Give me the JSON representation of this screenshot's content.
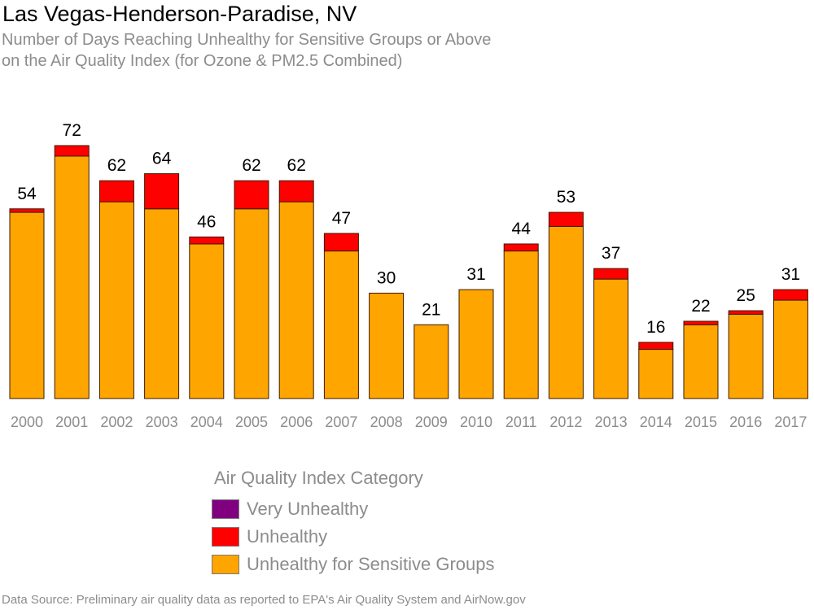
{
  "title": "Las Vegas-Henderson-Paradise, NV",
  "subtitle_lines": [
    "Number of Days Reaching Unhealthy for Sensitive Groups or Above",
    "on the Air Quality Index (for Ozone & PM2.5 Combined)"
  ],
  "legend": {
    "title": "Air Quality Index Category",
    "items": [
      {
        "label": "Very Unhealthy",
        "color": "#800080"
      },
      {
        "label": "Unhealthy",
        "color": "#ff0000"
      },
      {
        "label": "Unhealthy for Sensitive Groups",
        "color": "#ffa500"
      }
    ]
  },
  "source": "Data Source: Preliminary air quality data as reported to EPA's Air Quality System and AirNow.gov",
  "chart_data": {
    "type": "bar",
    "stacked": true,
    "categories": [
      "2000",
      "2001",
      "2002",
      "2003",
      "2004",
      "2005",
      "2006",
      "2007",
      "2008",
      "2009",
      "2010",
      "2011",
      "2012",
      "2013",
      "2014",
      "2015",
      "2016",
      "2017"
    ],
    "series": [
      {
        "name": "Unhealthy for Sensitive Groups",
        "color": "#ffa500",
        "values": [
          53,
          69,
          56,
          54,
          44,
          54,
          56,
          42,
          30,
          21,
          31,
          42,
          49,
          34,
          14,
          21,
          24,
          28
        ]
      },
      {
        "name": "Unhealthy",
        "color": "#ff0000",
        "values": [
          1,
          3,
          6,
          10,
          2,
          8,
          6,
          5,
          0,
          0,
          0,
          2,
          4,
          3,
          2,
          1,
          1,
          3
        ]
      },
      {
        "name": "Very Unhealthy",
        "color": "#800080",
        "values": [
          0,
          0,
          0,
          0,
          0,
          0,
          0,
          0,
          0,
          0,
          0,
          0,
          0,
          0,
          0,
          0,
          0,
          0
        ]
      }
    ],
    "totals": [
      54,
      72,
      62,
      64,
      46,
      62,
      62,
      47,
      30,
      21,
      31,
      44,
      53,
      37,
      16,
      22,
      25,
      31
    ],
    "ylim": [
      0,
      72
    ],
    "grid": false,
    "legend_position": "bottom"
  }
}
